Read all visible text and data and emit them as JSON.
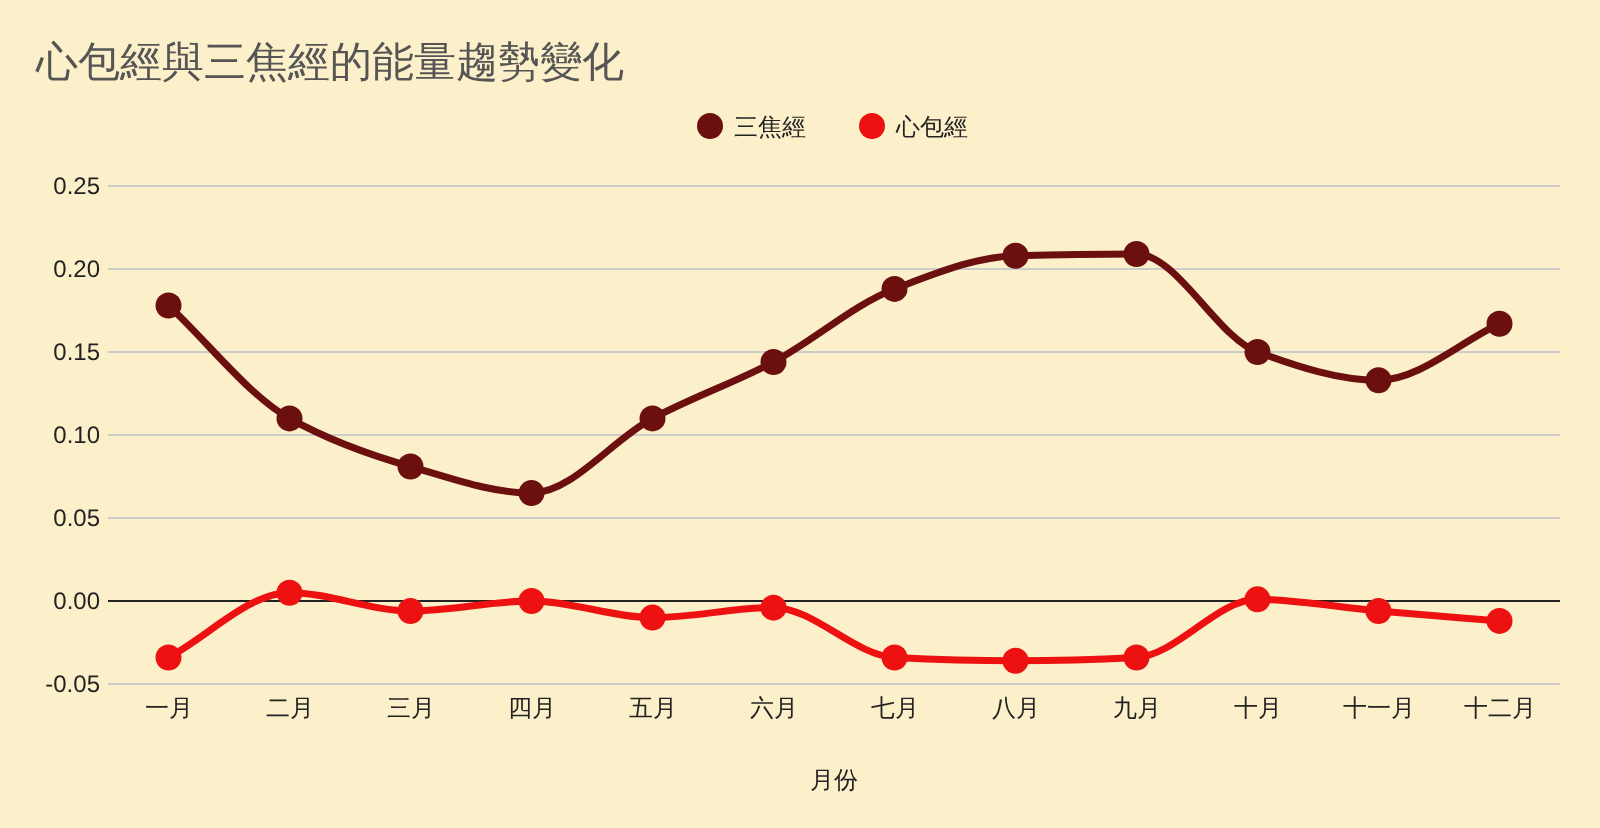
{
  "chart_data": {
    "type": "line",
    "title": "心包經與三焦經的能量趨勢變化",
    "xlabel": "月份",
    "categories": [
      "一月",
      "二月",
      "三月",
      "四月",
      "五月",
      "六月",
      "七月",
      "八月",
      "九月",
      "十月",
      "十一月",
      "十二月"
    ],
    "series": [
      {
        "name": "三焦經",
        "color": "#6b0f0f",
        "values": [
          0.178,
          0.11,
          0.081,
          0.065,
          0.11,
          0.144,
          0.188,
          0.208,
          0.209,
          0.15,
          0.133,
          0.167
        ]
      },
      {
        "name": "心包經",
        "color": "#ee1111",
        "values": [
          -0.034,
          0.005,
          -0.006,
          0.0,
          -0.01,
          -0.004,
          -0.034,
          -0.036,
          -0.034,
          0.001,
          -0.006,
          -0.012
        ]
      }
    ],
    "ylim": [
      -0.05,
      0.25
    ],
    "yticks": [
      {
        "value": -0.05,
        "label": "-0.05"
      },
      {
        "value": 0,
        "label": "0.00"
      },
      {
        "value": 0.05,
        "label": "0.05"
      },
      {
        "value": 0.1,
        "label": "0.10"
      },
      {
        "value": 0.15,
        "label": "0.15"
      },
      {
        "value": 0.2,
        "label": "0.20"
      },
      {
        "value": 0.25,
        "label": "0.25"
      }
    ],
    "grid": "y",
    "legend": "top",
    "marker": "circle",
    "line_style": "solid"
  }
}
